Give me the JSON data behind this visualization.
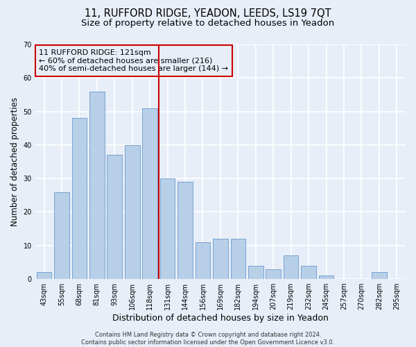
{
  "title_main": "11, RUFFORD RIDGE, YEADON, LEEDS, LS19 7QT",
  "title_sub": "Size of property relative to detached houses in Yeadon",
  "xlabel": "Distribution of detached houses by size in Yeadon",
  "ylabel": "Number of detached properties",
  "categories": [
    "43sqm",
    "55sqm",
    "68sqm",
    "81sqm",
    "93sqm",
    "106sqm",
    "118sqm",
    "131sqm",
    "144sqm",
    "156sqm",
    "169sqm",
    "182sqm",
    "194sqm",
    "207sqm",
    "219sqm",
    "232sqm",
    "245sqm",
    "257sqm",
    "270sqm",
    "282sqm",
    "295sqm"
  ],
  "values": [
    2,
    26,
    48,
    56,
    37,
    40,
    51,
    30,
    29,
    11,
    12,
    12,
    4,
    3,
    7,
    4,
    1,
    0,
    0,
    2,
    0
  ],
  "bar_color": "#b8cfe8",
  "bar_edge_color": "#6699cc",
  "highlight_index": 6,
  "highlight_color": "#cc0000",
  "ylim": [
    0,
    70
  ],
  "yticks": [
    0,
    10,
    20,
    30,
    40,
    50,
    60,
    70
  ],
  "annotation_text": "11 RUFFORD RIDGE: 121sqm\n← 60% of detached houses are smaller (216)\n40% of semi-detached houses are larger (144) →",
  "annotation_box_color": "#cc0000",
  "footer_text": "Contains HM Land Registry data © Crown copyright and database right 2024.\nContains public sector information licensed under the Open Government Licence v3.0.",
  "background_color": "#e8eef8",
  "grid_color": "#ffffff",
  "title_fontsize": 10.5,
  "subtitle_fontsize": 9.5,
  "tick_fontsize": 7,
  "ylabel_fontsize": 8.5,
  "xlabel_fontsize": 9,
  "footer_fontsize": 6,
  "annotation_fontsize": 8
}
